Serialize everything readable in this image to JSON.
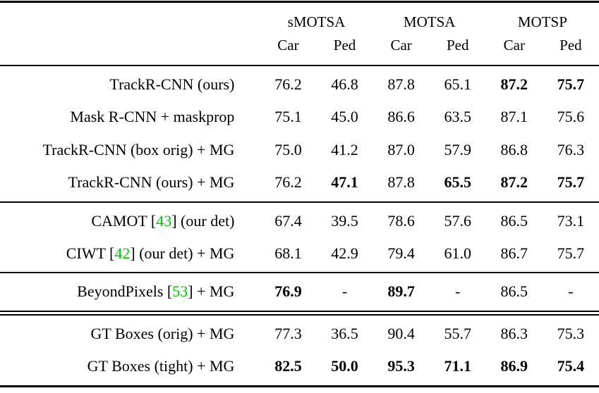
{
  "colors": {
    "text": "#000000",
    "background": "#ffffff",
    "citation": "#00c400"
  },
  "table": {
    "groups": [
      "sMOTSA",
      "MOTSA",
      "MOTSP"
    ],
    "sub_headers": [
      "Car",
      "Ped",
      "Car",
      "Ped",
      "Car",
      "Ped"
    ],
    "rows": [
      {
        "label": "TrackR-CNN (ours)",
        "values": [
          "76.2",
          "46.8",
          "87.8",
          "65.1",
          "87.2",
          "75.7"
        ],
        "bold": [
          false,
          false,
          false,
          false,
          true,
          true
        ]
      },
      {
        "label": "Mask R-CNN + maskprop",
        "values": [
          "75.1",
          "45.0",
          "86.6",
          "63.5",
          "87.1",
          "75.6"
        ],
        "bold": [
          false,
          false,
          false,
          false,
          false,
          false
        ]
      },
      {
        "label": "TrackR-CNN (box orig) + MG",
        "values": [
          "75.0",
          "41.2",
          "87.0",
          "57.9",
          "86.8",
          "76.3"
        ],
        "bold": [
          false,
          false,
          false,
          false,
          false,
          false
        ]
      },
      {
        "label": "TrackR-CNN (ours) + MG",
        "values": [
          "76.2",
          "47.1",
          "87.8",
          "65.5",
          "87.2",
          "75.7"
        ],
        "bold": [
          false,
          true,
          false,
          true,
          true,
          true
        ]
      },
      {
        "label_pre": "CAMOT [",
        "cite": "43",
        "label_post": "] (our det)",
        "values": [
          "67.4",
          "39.5",
          "78.6",
          "57.6",
          "86.5",
          "73.1"
        ],
        "bold": [
          false,
          false,
          false,
          false,
          false,
          false
        ]
      },
      {
        "label_pre": "CIWT [",
        "cite": "42",
        "label_post": "] (our det) + MG",
        "values": [
          "68.1",
          "42.9",
          "79.4",
          "61.0",
          "86.7",
          "75.7"
        ],
        "bold": [
          false,
          false,
          false,
          false,
          false,
          false
        ]
      },
      {
        "label_pre": "BeyondPixels [",
        "cite": "53",
        "label_post": "] + MG",
        "values": [
          "76.9",
          "-",
          "89.7",
          "-",
          "86.5",
          "-"
        ],
        "bold": [
          true,
          false,
          true,
          false,
          false,
          false
        ]
      },
      {
        "label": "GT Boxes (orig) + MG",
        "values": [
          "77.3",
          "36.5",
          "90.4",
          "55.7",
          "86.3",
          "75.3"
        ],
        "bold": [
          false,
          false,
          false,
          false,
          false,
          false
        ]
      },
      {
        "label": "GT Boxes (tight) + MG",
        "values": [
          "82.5",
          "50.0",
          "95.3",
          "71.1",
          "86.9",
          "75.4"
        ],
        "bold": [
          true,
          true,
          true,
          true,
          true,
          true
        ]
      }
    ]
  }
}
